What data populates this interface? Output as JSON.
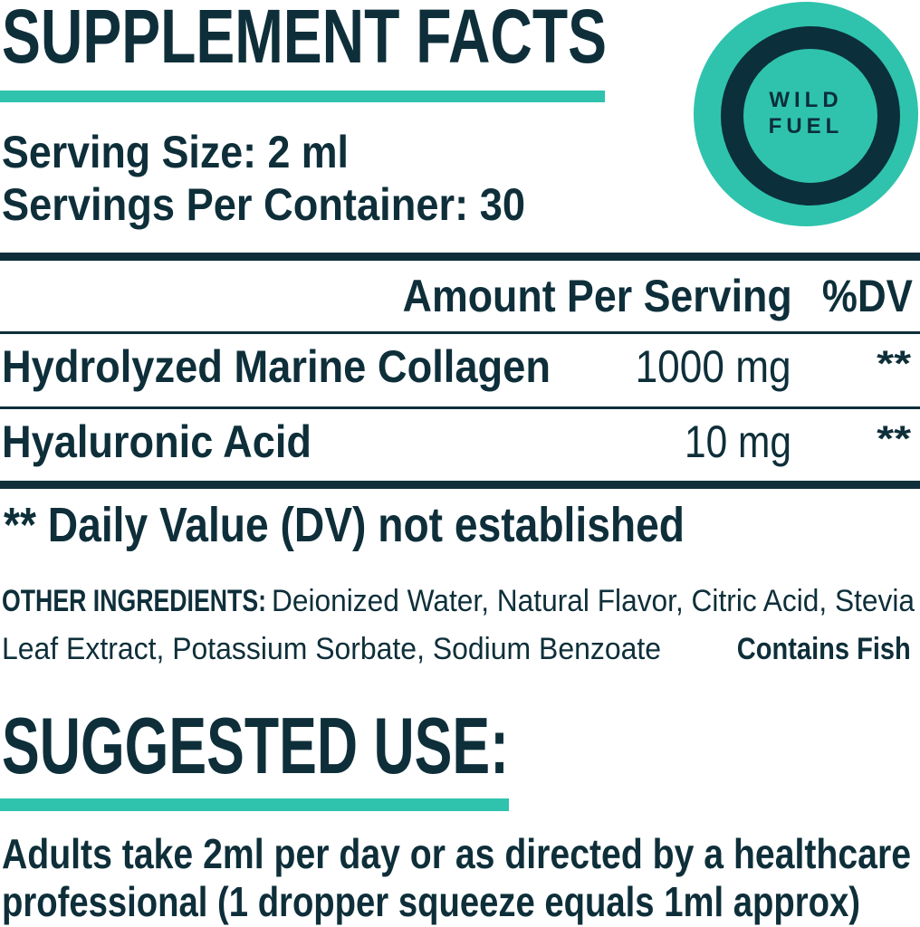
{
  "title": "SUPPLEMENT FACTS",
  "serving_size": "Serving Size: 2 ml",
  "servings_per_container": "Servings Per Container: 30",
  "logo": {
    "line1": "WILD",
    "line2": "FUEL"
  },
  "table": {
    "header_amount": "Amount Per Serving",
    "header_dv": "%DV",
    "rows": [
      {
        "name": "Hydrolyzed Marine Collagen",
        "amount": "1000 mg",
        "dv": "**"
      },
      {
        "name": "Hyaluronic Acid",
        "amount": "10 mg",
        "dv": "**"
      }
    ]
  },
  "dv_note": "** Daily Value (DV) not established",
  "other_ingredients": {
    "label": "OTHER INGREDIENTS:",
    "line1": "Deionized Water, Natural Flavor, Citric Acid, Stevia",
    "line2": "Leaf Extract, Potassium Sorbate, Sodium Benzoate",
    "allergen": "Contains Fish"
  },
  "suggested_use": {
    "title": "SUGGESTED USE:",
    "line1": "Adults take 2ml per day or as directed by a healthcare",
    "line2": "professional (1 dropper squeeze equals 1ml approx)"
  },
  "colors": {
    "text": "#0e2f3a",
    "accent": "#2fc3ad"
  }
}
